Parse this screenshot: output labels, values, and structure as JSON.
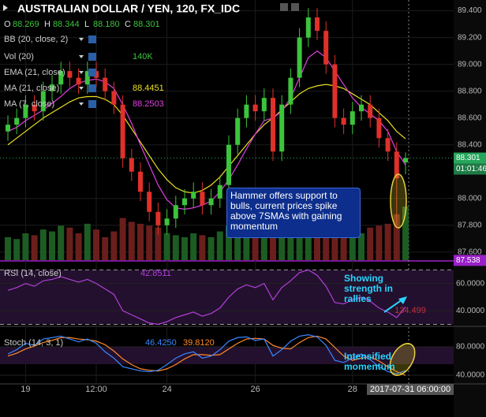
{
  "chart_data": {
    "type": "candlestick",
    "title": "AUSTRALIAN DOLLAR / YEN, 120, FX_IDC",
    "ohlc": {
      "labels": [
        "O",
        "H",
        "L",
        "C"
      ],
      "values": [
        88.269,
        88.344,
        88.18,
        88.301
      ],
      "value_labels": [
        "88.269",
        "88.344",
        "88.180",
        "88.301"
      ]
    },
    "categories": [
      null,
      null,
      "19",
      null,
      null,
      null,
      null,
      null,
      null,
      null,
      "12:00",
      null,
      null,
      null,
      null,
      null,
      null,
      null,
      "24",
      null,
      null,
      null,
      null,
      null,
      null,
      null,
      null,
      null,
      "26",
      null,
      null,
      null,
      null,
      null,
      null,
      null,
      null,
      null,
      null,
      "28",
      null,
      null,
      null,
      null,
      null,
      null
    ],
    "cursor_time": "2017-07-31 06:00:00",
    "up_color": "#3cc43c",
    "down_color": "#e0302a",
    "open": [
      88.5,
      88.55,
      88.6,
      88.7,
      88.65,
      88.8,
      88.85,
      88.95,
      88.9,
      88.85,
      88.95,
      88.9,
      88.8,
      88.7,
      88.3,
      88.2,
      88.05,
      87.9,
      87.8,
      87.85,
      87.95,
      88.0,
      88.05,
      87.95,
      88.0,
      88.1,
      88.4,
      88.6,
      88.7,
      88.65,
      88.75,
      88.35,
      88.7,
      88.9,
      89.2,
      89.35,
      89.25,
      89.0,
      88.6,
      88.55,
      88.65,
      88.7,
      88.6,
      88.45,
      88.35,
      88.269
    ],
    "high": [
      88.62,
      88.67,
      88.77,
      88.77,
      88.87,
      88.92,
      89.02,
      89.02,
      88.97,
      89.02,
      89.02,
      88.97,
      88.87,
      88.77,
      88.37,
      88.27,
      88.12,
      87.97,
      87.92,
      88.02,
      88.07,
      88.12,
      88.12,
      88.07,
      88.17,
      88.47,
      88.67,
      88.77,
      88.77,
      88.82,
      88.82,
      88.77,
      88.97,
      89.27,
      89.42,
      89.42,
      89.32,
      89.07,
      88.67,
      88.72,
      88.77,
      88.77,
      88.67,
      88.52,
      88.42,
      88.344
    ],
    "low": [
      88.43,
      88.48,
      88.53,
      88.58,
      88.58,
      88.73,
      88.78,
      88.83,
      88.78,
      88.78,
      88.83,
      88.73,
      88.63,
      88.23,
      88.13,
      87.98,
      87.83,
      87.73,
      87.73,
      87.78,
      87.88,
      87.93,
      87.88,
      87.88,
      87.93,
      88.03,
      88.33,
      88.53,
      88.58,
      88.58,
      88.28,
      88.28,
      88.63,
      88.83,
      89.13,
      89.18,
      88.93,
      88.53,
      88.48,
      88.48,
      88.58,
      88.53,
      88.38,
      88.28,
      87.8,
      88.18
    ],
    "close": [
      88.55,
      88.6,
      88.7,
      88.65,
      88.8,
      88.85,
      88.95,
      88.9,
      88.85,
      88.95,
      88.9,
      88.8,
      88.7,
      88.3,
      88.2,
      88.05,
      87.9,
      87.8,
      87.85,
      87.95,
      88.0,
      88.05,
      87.95,
      88.0,
      88.1,
      88.4,
      88.6,
      88.7,
      88.65,
      88.75,
      88.35,
      88.7,
      88.9,
      89.2,
      89.35,
      89.25,
      89.0,
      88.6,
      88.55,
      88.65,
      88.7,
      88.6,
      88.45,
      88.35,
      88.15,
      88.301
    ],
    "ylim": [
      87.54,
      89.48
    ],
    "yticks": [
      {
        "value": 89.4,
        "label": "89.400"
      },
      {
        "value": 89.2,
        "label": "89.200"
      },
      {
        "value": 89.0,
        "label": "89.000"
      },
      {
        "value": 88.8,
        "label": "88.800"
      },
      {
        "value": 88.6,
        "label": "88.600"
      },
      {
        "value": 88.4,
        "label": "88.400"
      },
      {
        "value": 88.0,
        "label": "88.000"
      },
      {
        "value": 87.8,
        "label": "87.800"
      },
      {
        "value": 87.6,
        "label": "87.600"
      }
    ],
    "grid": true,
    "price_labels": [
      {
        "value": 88.301,
        "color": "#26a65b"
      },
      {
        "value": 87.538,
        "color": "#9a20c8"
      }
    ],
    "countdown": "01:01:46",
    "volume": {
      "name": "Vol (20)",
      "current": {
        "value": 140,
        "label": "140K"
      },
      "color": "#3cc43c",
      "values": [
        60,
        55,
        70,
        65,
        80,
        75,
        90,
        85,
        70,
        95,
        80,
        60,
        75,
        110,
        100,
        95,
        90,
        85,
        70,
        65,
        60,
        70,
        65,
        60,
        75,
        90,
        85,
        80,
        70,
        75,
        95,
        80,
        85,
        100,
        110,
        105,
        90,
        95,
        80,
        75,
        70,
        85,
        90,
        95,
        120,
        140
      ]
    },
    "indicators": [
      {
        "name": "BB (20, close, 2)"
      },
      {
        "name": "EMA (21, close)"
      },
      {
        "name": "MA (21, close)",
        "color": "#e8e020",
        "last": 88.4451,
        "values": [
          88.4,
          88.45,
          88.5,
          88.55,
          88.6,
          88.64,
          88.68,
          88.72,
          88.75,
          88.76,
          88.76,
          88.74,
          88.7,
          88.62,
          88.52,
          88.42,
          88.32,
          88.22,
          88.14,
          88.08,
          88.05,
          88.04,
          88.06,
          88.1,
          88.16,
          88.24,
          88.32,
          88.4,
          88.48,
          88.55,
          88.6,
          88.66,
          88.72,
          88.78,
          88.82,
          88.84,
          88.85,
          88.84,
          88.82,
          88.78,
          88.74,
          88.7,
          88.64,
          88.58,
          88.5,
          88.4451
        ]
      },
      {
        "name": "MA (7, close)",
        "color": "#e040e0",
        "last": 88.2503,
        "values": [
          88.5,
          88.53,
          88.58,
          88.62,
          88.66,
          88.71,
          88.76,
          88.82,
          88.86,
          88.88,
          88.89,
          88.87,
          88.82,
          88.7,
          88.56,
          88.4,
          88.25,
          88.1,
          87.99,
          87.93,
          87.92,
          87.93,
          87.95,
          87.98,
          88.05,
          88.14,
          88.25,
          88.37,
          88.48,
          88.58,
          88.6,
          88.65,
          88.75,
          88.9,
          89.05,
          89.1,
          89.05,
          88.95,
          88.85,
          88.75,
          88.68,
          88.63,
          88.58,
          88.5,
          88.35,
          88.2503
        ]
      }
    ],
    "rsi": {
      "name": "RSI (14, close)",
      "color": "#b040d8",
      "last": 42.8511,
      "ma_value": 134.499,
      "ylim": [
        29.7,
        75.4
      ],
      "yticks": [
        {
          "value": 60,
          "label": "60.0000"
        },
        {
          "value": 40,
          "label": "40.0000"
        }
      ],
      "bands": [
        70,
        30
      ],
      "values": [
        55,
        57,
        60,
        58,
        62,
        63,
        65,
        63,
        61,
        63,
        60,
        56,
        52,
        40,
        37,
        34,
        31,
        30,
        32,
        35,
        37,
        39,
        36,
        38,
        42,
        50,
        56,
        59,
        57,
        60,
        48,
        57,
        62,
        68,
        70,
        66,
        58,
        46,
        45,
        48,
        50,
        47,
        42,
        39,
        35,
        42.8511
      ]
    },
    "stoch": {
      "name": "Stoch (14, 3, 1)",
      "ylim": [
        30,
        104.4
      ],
      "yticks": [
        {
          "value": 80,
          "label": "80.0000"
        },
        {
          "value": 40,
          "label": "40.0000"
        }
      ],
      "bands": [
        80
      ],
      "k": {
        "color": "#3a86ff",
        "last_label": "46.4250",
        "values": [
          70,
          76,
          85,
          82,
          91,
          93,
          95,
          91,
          87,
          91,
          85,
          73,
          64,
          52,
          49,
          46,
          45,
          47,
          55,
          64,
          70,
          73,
          64,
          67,
          76,
          88,
          93,
          94,
          89,
          91,
          67,
          76,
          88,
          95,
          97,
          94,
          82,
          61,
          58,
          64,
          70,
          62,
          52,
          45,
          42,
          46.425
        ]
      },
      "d": {
        "color": "#ff8a2a",
        "last_label": "39.8120",
        "values": [
          67,
          71,
          77,
          81,
          86,
          89,
          93,
          93,
          91,
          90,
          88,
          83,
          74,
          63,
          55,
          49,
          47,
          46,
          49,
          55,
          63,
          69,
          69,
          68,
          69,
          77,
          85,
          91,
          92,
          91,
          82,
          78,
          77,
          86,
          93,
          95,
          91,
          79,
          67,
          61,
          64,
          66,
          60,
          52,
          45,
          39.812
        ]
      }
    },
    "annotations": [
      {
        "text": "Hammer offers support to bulls, current prices spike above 7SMAs with gaining momentum"
      },
      {
        "text": "Showing strength in rallies"
      },
      {
        "text": "Intensified momentum"
      }
    ]
  }
}
